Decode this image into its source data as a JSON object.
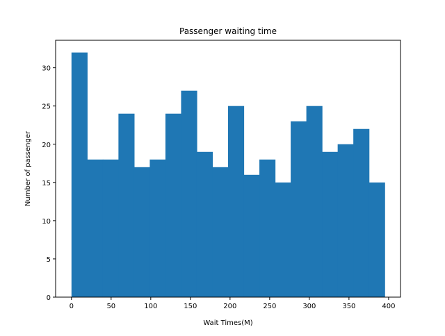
{
  "chart_data": {
    "type": "bar",
    "title": "Passenger waiting time",
    "xlabel": "Wait Times(M)",
    "ylabel": "Number of passenger",
    "bin_edges": [
      0,
      19.75,
      39.5,
      59.25,
      79,
      98.75,
      118.5,
      138.25,
      158,
      177.75,
      197.5,
      217.25,
      237,
      256.75,
      276.5,
      296.25,
      316,
      335.75,
      355.5,
      375.25,
      395
    ],
    "values": [
      32,
      18,
      18,
      24,
      17,
      18,
      24,
      27,
      19,
      17,
      25,
      16,
      18,
      15,
      23,
      25,
      19,
      20,
      22,
      15
    ],
    "xlim": [
      -20,
      415
    ],
    "ylim": [
      0,
      33.6
    ],
    "xticks": [
      0,
      50,
      100,
      150,
      200,
      250,
      300,
      350,
      400
    ],
    "yticks": [
      0,
      5,
      10,
      15,
      20,
      25,
      30
    ],
    "grid": false,
    "colors": {
      "bar": "#1f77b4"
    }
  }
}
